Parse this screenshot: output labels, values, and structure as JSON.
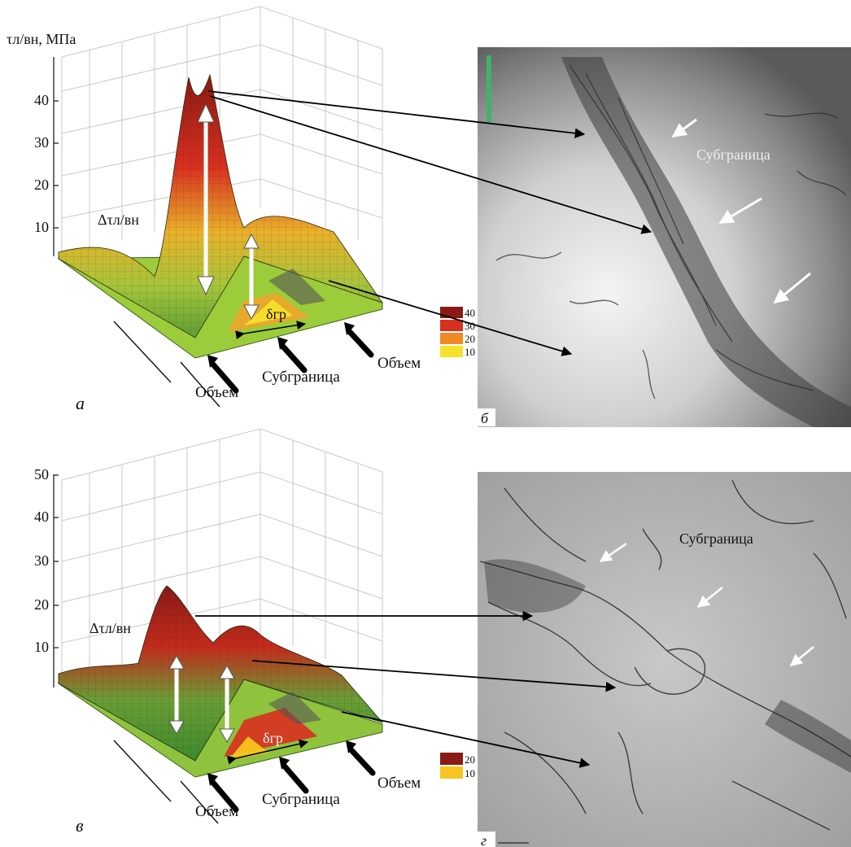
{
  "panel_a": {
    "letter": "а",
    "ylabel": "τл/вн, МПа",
    "yticks": [
      "10",
      "20",
      "30",
      "40"
    ],
    "delta_label": "Δτл/вн",
    "delta_gr": "δгр",
    "label_subgranica": "Субграница",
    "label_obem_left": "Объем",
    "label_obem_right": "Объем",
    "legend": [
      "40",
      "30",
      "20",
      "10"
    ]
  },
  "panel_b": {
    "letter": "б",
    "label": "Субграница"
  },
  "panel_v": {
    "letter": "в",
    "yticks": [
      "10",
      "20",
      "30",
      "40",
      "50"
    ],
    "delta_label": "Δτл/вн",
    "delta_gr": "δгр",
    "label_subgranica": "Субграница",
    "label_obem_left": "Объем",
    "label_obem_right": "Объем",
    "legend": [
      "20",
      "10"
    ]
  },
  "panel_g": {
    "letter": "г",
    "label": "Субграница"
  },
  "colors": {
    "peak": "#8a1a14",
    "red": "#d8301f",
    "orange": "#f08a25",
    "yellow": "#f7e22a",
    "green": "#6cab3a",
    "base": "#9ccc3a"
  }
}
